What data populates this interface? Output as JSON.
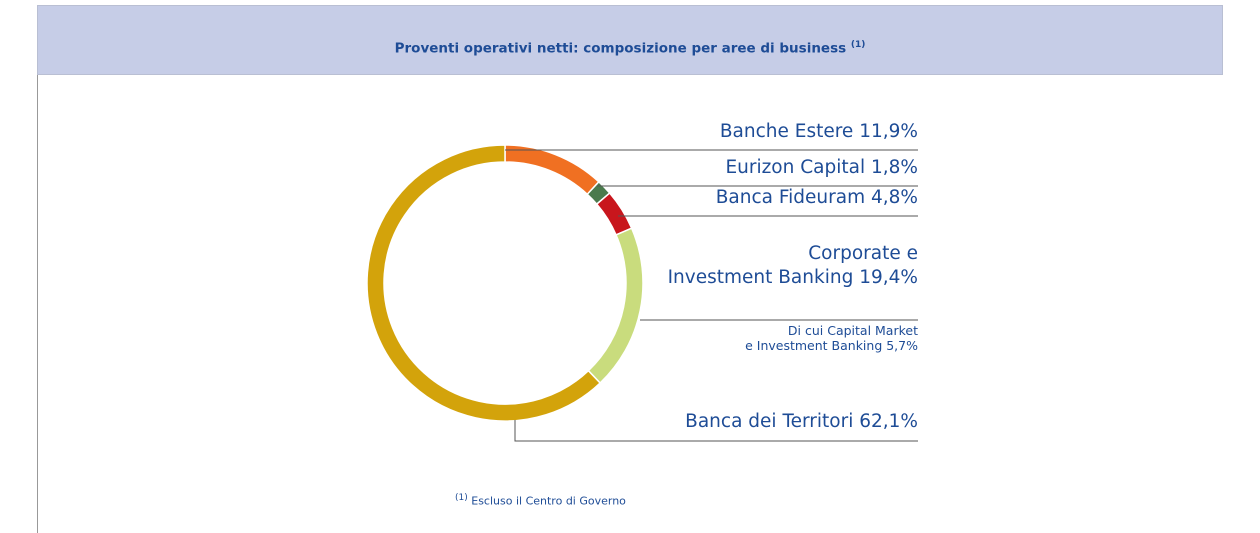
{
  "chart_data": {
    "type": "pie",
    "donut": true,
    "title": "Proventi operativi netti: composizione per aree di business",
    "title_note": "(1)",
    "categories": [
      "Banche Estere",
      "Eurizon Capital",
      "Banca Fideuram",
      "Corporate e\nInvestment Banking",
      "Banca dei Territori"
    ],
    "values": [
      11.9,
      1.8,
      4.8,
      19.4,
      62.1
    ],
    "value_labels": [
      "11,9%",
      "1,8%",
      "4,8%",
      "19,4%",
      "62,1%"
    ],
    "colors": [
      "#f07022",
      "#4b7a4d",
      "#c8161d",
      "#c9dc7d",
      "#d3a30b"
    ],
    "annotation": "Di cui Capital Market\ne Investment Banking 5,7%",
    "footnote": {
      "marker": "(1)",
      "text": "Escluso il Centro di Governo"
    }
  }
}
